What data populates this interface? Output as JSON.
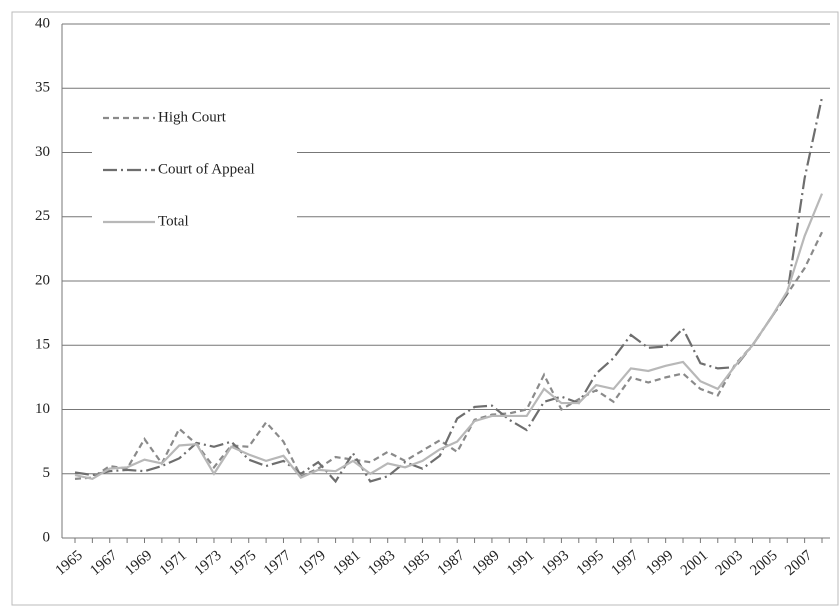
{
  "chart_data": {
    "type": "line",
    "categories": [
      "1965",
      null,
      "1967",
      null,
      "1969",
      null,
      "1971",
      null,
      "1973",
      null,
      "1975",
      null,
      "1977",
      null,
      "1979",
      null,
      "1981",
      null,
      "1983",
      null,
      "1985",
      null,
      "1987",
      null,
      "1989",
      null,
      "1991",
      null,
      "1993",
      null,
      "1995",
      null,
      "1997",
      null,
      "1999",
      null,
      "2001",
      null,
      "2003",
      null,
      "2005",
      null,
      "2007",
      null
    ],
    "series": [
      {
        "name": "High Court",
        "color": "#8a8a8a",
        "dash": "6,4",
        "values": [
          4.6,
          4.7,
          5.6,
          5.4,
          7.7,
          5.8,
          8.5,
          7.3,
          5.5,
          7.2,
          7.1,
          9.0,
          7.5,
          4.8,
          5.4,
          6.3,
          6.1,
          5.9,
          6.7,
          6.0,
          6.8,
          7.6,
          6.7,
          9.2,
          9.6,
          9.7,
          10.0,
          12.7,
          10.0,
          10.8,
          11.5,
          10.6,
          12.5,
          12.1,
          12.5,
          12.8,
          11.6,
          11.1,
          13.5,
          15.0,
          17.0,
          19.0,
          21.0,
          23.8
        ]
      },
      {
        "name": "Court of Appeal",
        "color": "#6e6e6e",
        "dash": "14,4,2,4",
        "values": [
          5.1,
          4.9,
          5.2,
          5.3,
          5.2,
          5.6,
          6.2,
          7.4,
          7.1,
          7.5,
          6.1,
          5.6,
          6.0,
          5.0,
          5.9,
          4.4,
          6.6,
          4.4,
          4.8,
          5.9,
          5.4,
          6.4,
          9.3,
          10.2,
          10.3,
          9.2,
          8.4,
          10.6,
          11.0,
          10.5,
          12.8,
          14.0,
          15.8,
          14.8,
          14.9,
          16.3,
          13.6,
          13.2,
          13.3,
          15.0,
          17.0,
          19.0,
          28.0,
          34.3
        ]
      },
      {
        "name": "Total",
        "color": "#b8b8b8",
        "dash": "none",
        "values": [
          4.9,
          4.6,
          5.4,
          5.5,
          6.1,
          5.8,
          7.2,
          7.3,
          5.0,
          7.1,
          6.5,
          6.0,
          6.4,
          4.7,
          5.3,
          5.2,
          6.0,
          5.0,
          5.8,
          5.5,
          6.0,
          6.9,
          7.5,
          9.1,
          9.5,
          9.5,
          9.5,
          11.6,
          10.5,
          10.5,
          11.9,
          11.6,
          13.2,
          13.0,
          13.4,
          13.7,
          12.2,
          11.6,
          13.4,
          15.0,
          17.0,
          19.2,
          23.5,
          26.8
        ]
      }
    ],
    "ylim": [
      0,
      40
    ],
    "yticks": [
      0,
      5,
      10,
      15,
      20,
      25,
      30,
      35,
      40
    ],
    "grid": true,
    "legend": "upper left"
  }
}
